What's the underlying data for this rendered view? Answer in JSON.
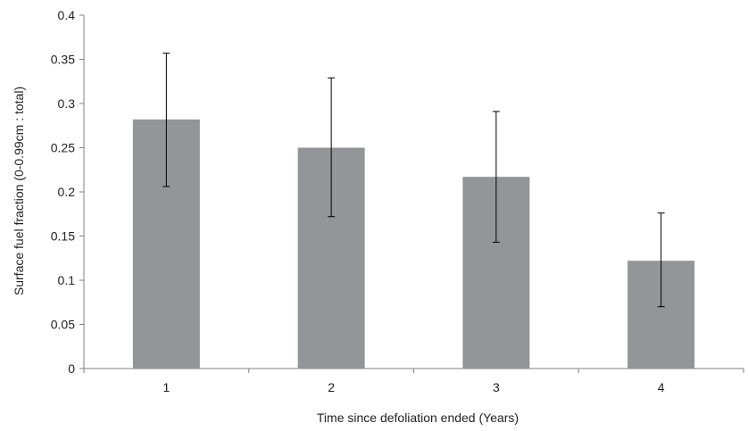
{
  "chart_data": {
    "type": "bar",
    "categories": [
      "1",
      "2",
      "3",
      "4"
    ],
    "values": [
      0.282,
      0.25,
      0.217,
      0.122
    ],
    "error_bars": {
      "upper": [
        0.357,
        0.329,
        0.291,
        0.176
      ],
      "lower": [
        0.206,
        0.172,
        0.143,
        0.07
      ]
    },
    "xlabel": "Time since defoliation ended (Years)",
    "ylabel": "Surface fuel fraction (0-0.99cm : total)",
    "ylim": [
      0,
      0.4
    ],
    "yticks": [
      "0",
      "0.05",
      "0.1",
      "0.15",
      "0.2",
      "0.25",
      "0.3",
      "0.35",
      "0.4"
    ],
    "grid": false,
    "legend": "none",
    "colors": {
      "bar": "#939598",
      "axis": "#808080",
      "error_bar": "#000000"
    }
  }
}
